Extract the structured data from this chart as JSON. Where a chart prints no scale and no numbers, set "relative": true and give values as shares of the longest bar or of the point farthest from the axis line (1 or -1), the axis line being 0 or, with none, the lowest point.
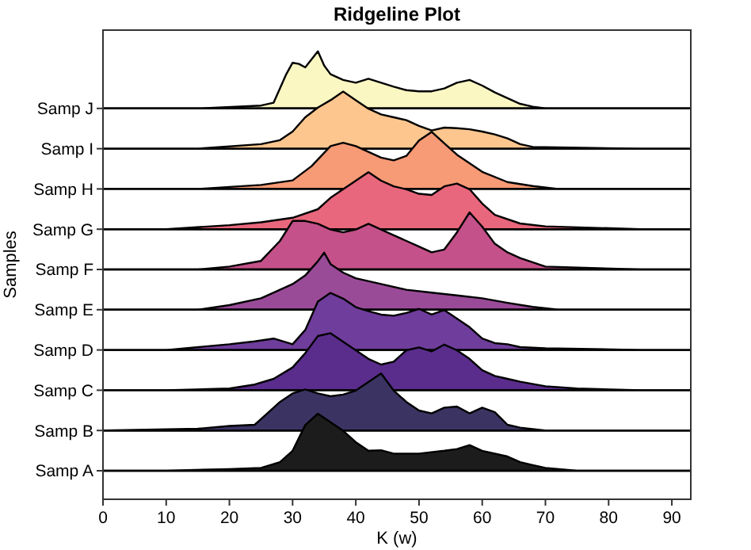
{
  "chart_data": [
    {
      "type": "area",
      "title": "Ridgeline Plot",
      "ylabel": "Samp J",
      "relative": true,
      "xlim": [
        0,
        93
      ],
      "tick_labels": false,
      "series": [
        {
          "color": "#fbf7c3",
          "x": [
            0,
            15,
            25,
            27,
            28,
            29,
            30,
            31,
            32,
            34,
            35,
            36,
            38,
            40,
            42,
            44,
            46,
            48,
            50,
            52,
            54,
            56,
            58,
            60,
            62,
            64,
            66,
            68,
            70,
            85,
            93
          ],
          "values": [
            0,
            0,
            0.05,
            0.1,
            0.35,
            0.6,
            0.8,
            0.78,
            0.72,
            1,
            0.75,
            0.6,
            0.5,
            0.45,
            0.52,
            0.45,
            0.38,
            0.32,
            0.3,
            0.3,
            0.35,
            0.45,
            0.5,
            0.4,
            0.28,
            0.18,
            0.08,
            0.03,
            0,
            0,
            0
          ]
        }
      ]
    },
    {
      "type": "area",
      "ylabel": "Samp I",
      "relative": true,
      "xlim": [
        0,
        93
      ],
      "tick_labels": false,
      "series": [
        {
          "color": "#fcc68e",
          "x": [
            0,
            15,
            25,
            28,
            30,
            32,
            34,
            36,
            38,
            40,
            42,
            44,
            46,
            48,
            50,
            52,
            54,
            56,
            58,
            60,
            62,
            64,
            66,
            68,
            85,
            93
          ],
          "values": [
            0,
            0,
            0.08,
            0.15,
            0.3,
            0.55,
            0.72,
            0.85,
            1,
            0.85,
            0.7,
            0.6,
            0.55,
            0.5,
            0.4,
            0.32,
            0.37,
            0.36,
            0.34,
            0.3,
            0.25,
            0.18,
            0.08,
            0.03,
            0,
            0
          ]
        }
      ]
    },
    {
      "type": "area",
      "ylabel": "Samp H",
      "relative": true,
      "xlim": [
        0,
        93
      ],
      "tick_labels": false,
      "series": [
        {
          "color": "#f79a76",
          "x": [
            0,
            15,
            25,
            30,
            33,
            36,
            38,
            40,
            42,
            44,
            46,
            48,
            50,
            52,
            54,
            56,
            58,
            60,
            64,
            68,
            72,
            85,
            93
          ],
          "values": [
            0,
            0,
            0.07,
            0.15,
            0.4,
            0.75,
            0.81,
            0.75,
            0.65,
            0.55,
            0.5,
            0.58,
            0.85,
            1,
            0.8,
            0.6,
            0.45,
            0.3,
            0.12,
            0.05,
            0,
            0,
            0
          ]
        }
      ]
    },
    {
      "type": "area",
      "ylabel": "Samp G",
      "relative": true,
      "xlim": [
        0,
        93
      ],
      "tick_labels": false,
      "series": [
        {
          "color": "#e8677c",
          "x": [
            0,
            10,
            20,
            25,
            30,
            34,
            36,
            38,
            40,
            42,
            44,
            46,
            48,
            50,
            52,
            54,
            56,
            58,
            60,
            62,
            66,
            70,
            85,
            93
          ],
          "values": [
            0,
            0,
            0.07,
            0.12,
            0.2,
            0.35,
            0.55,
            0.7,
            0.85,
            1,
            0.85,
            0.75,
            0.7,
            0.62,
            0.6,
            0.75,
            0.8,
            0.7,
            0.45,
            0.25,
            0.1,
            0.05,
            0,
            0
          ]
        }
      ]
    },
    {
      "type": "area",
      "ylabel": "Samp F",
      "relative": true,
      "xlim": [
        0,
        93
      ],
      "tick_labels": false,
      "annotations": [
        "Samples"
      ],
      "series": [
        {
          "color": "#c45189",
          "x": [
            0,
            15,
            20,
            25,
            28,
            30,
            32,
            34,
            36,
            38,
            40,
            42,
            44,
            46,
            48,
            50,
            52,
            54,
            56,
            58,
            60,
            62,
            64,
            66,
            70,
            85,
            93
          ],
          "values": [
            0,
            0,
            0.05,
            0.15,
            0.5,
            0.85,
            0.85,
            0.8,
            0.7,
            0.65,
            0.7,
            0.8,
            0.7,
            0.6,
            0.5,
            0.4,
            0.3,
            0.35,
            0.65,
            1,
            0.75,
            0.45,
            0.3,
            0.2,
            0.05,
            0,
            0
          ]
        }
      ]
    },
    {
      "type": "area",
      "ylabel": "Samp E",
      "relative": true,
      "xlim": [
        0,
        93
      ],
      "tick_labels": false,
      "series": [
        {
          "color": "#9a4b98",
          "x": [
            0,
            15,
            20,
            25,
            28,
            30,
            32,
            34,
            35,
            36,
            38,
            40,
            44,
            48,
            52,
            56,
            60,
            64,
            68,
            72,
            85,
            93
          ],
          "values": [
            0,
            0,
            0.08,
            0.2,
            0.35,
            0.45,
            0.6,
            0.85,
            1,
            0.8,
            0.65,
            0.55,
            0.45,
            0.35,
            0.3,
            0.25,
            0.2,
            0.12,
            0.05,
            0,
            0,
            0
          ]
        }
      ]
    },
    {
      "type": "area",
      "ylabel": "Samp D",
      "relative": true,
      "xlim": [
        0,
        93
      ],
      "tick_labels": false,
      "series": [
        {
          "color": "#6f3d9b",
          "x": [
            0,
            10,
            20,
            24,
            27,
            30,
            32,
            34,
            36,
            38,
            40,
            42,
            44,
            46,
            48,
            50,
            52,
            54,
            56,
            58,
            60,
            62,
            64,
            66,
            70,
            85,
            93
          ],
          "values": [
            0,
            0,
            0.1,
            0.15,
            0.2,
            0.1,
            0.35,
            0.85,
            1,
            0.9,
            0.75,
            0.68,
            0.62,
            0.6,
            0.65,
            0.72,
            0.62,
            0.7,
            0.55,
            0.4,
            0.2,
            0.12,
            0.1,
            0.05,
            0.03,
            0,
            0
          ]
        }
      ]
    },
    {
      "type": "area",
      "ylabel": "Samp C",
      "relative": true,
      "xlim": [
        0,
        93
      ],
      "tick_labels": false,
      "series": [
        {
          "color": "#5a2d8c",
          "x": [
            0,
            10,
            20,
            24,
            27,
            30,
            32,
            34,
            36,
            38,
            40,
            42,
            44,
            46,
            48,
            50,
            52,
            54,
            56,
            58,
            60,
            62,
            64,
            66,
            70,
            75,
            85,
            93
          ],
          "values": [
            0,
            0,
            0.03,
            0.1,
            0.2,
            0.4,
            0.65,
            0.95,
            1,
            0.85,
            0.7,
            0.55,
            0.45,
            0.5,
            0.7,
            0.75,
            0.68,
            0.8,
            0.7,
            0.55,
            0.35,
            0.25,
            0.2,
            0.15,
            0.07,
            0.03,
            0,
            0
          ]
        }
      ]
    },
    {
      "type": "area",
      "ylabel": "Samp B",
      "relative": true,
      "xlim": [
        0,
        93
      ],
      "tick_labels": false,
      "series": [
        {
          "color": "#3b3463",
          "x": [
            0,
            15,
            20,
            24,
            26,
            28,
            30,
            32,
            34,
            36,
            38,
            40,
            42,
            44,
            46,
            48,
            50,
            52,
            54,
            56,
            58,
            60,
            62,
            64,
            66,
            70,
            85,
            93
          ],
          "values": [
            0,
            0.03,
            0.08,
            0.1,
            0.3,
            0.5,
            0.65,
            0.72,
            0.65,
            0.6,
            0.63,
            0.7,
            0.85,
            1,
            0.7,
            0.5,
            0.35,
            0.3,
            0.4,
            0.42,
            0.3,
            0.4,
            0.32,
            0.1,
            0.05,
            0,
            0,
            0
          ]
        }
      ]
    },
    {
      "type": "area",
      "ylabel": "Samp A",
      "xlabel": "K (w)",
      "relative": true,
      "xlim": [
        0,
        93
      ],
      "xticks": [
        0,
        10,
        20,
        30,
        40,
        50,
        60,
        70,
        80,
        90
      ],
      "tick_labels": "x",
      "series": [
        {
          "color": "#1c1c1c",
          "x": [
            0,
            10,
            20,
            25,
            28,
            30,
            32,
            34,
            36,
            38,
            40,
            42,
            44,
            46,
            48,
            50,
            54,
            56,
            58,
            60,
            62,
            64,
            66,
            68,
            70,
            75,
            85,
            93
          ],
          "values": [
            0,
            0,
            0.03,
            0.05,
            0.15,
            0.35,
            0.8,
            1,
            0.85,
            0.7,
            0.5,
            0.35,
            0.36,
            0.3,
            0.3,
            0.3,
            0.35,
            0.38,
            0.45,
            0.35,
            0.3,
            0.25,
            0.15,
            0.1,
            0.05,
            0,
            0,
            0
          ]
        }
      ]
    }
  ]
}
